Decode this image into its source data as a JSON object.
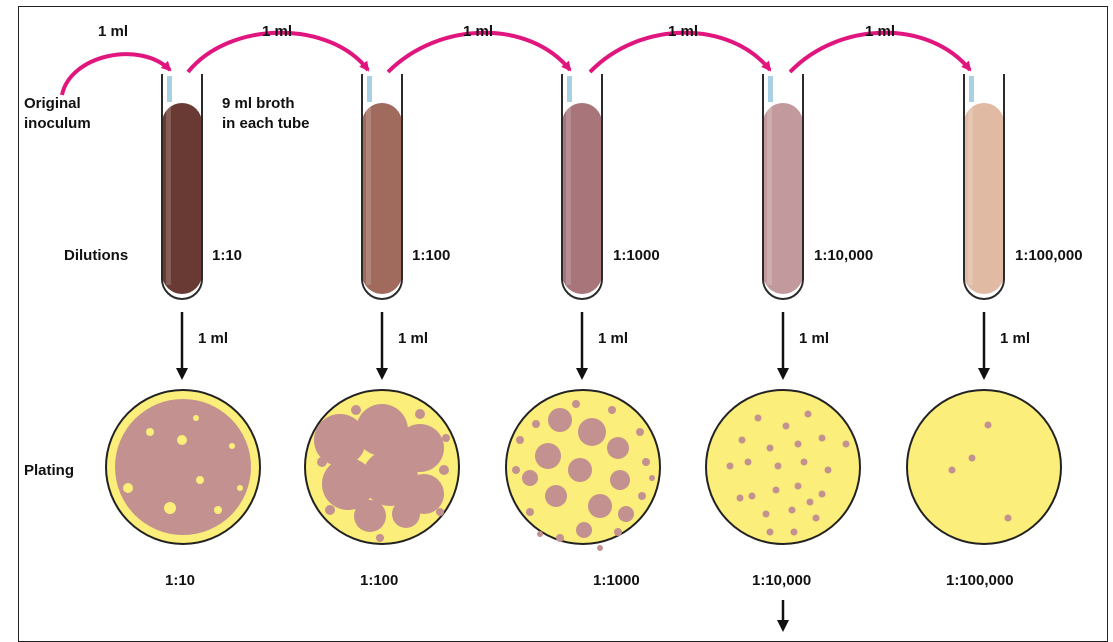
{
  "diagram": {
    "transfer_label": "1 ml",
    "original_inoculum": [
      "Original",
      "inoculum"
    ],
    "broth_note": [
      "9 ml broth",
      "in each tube"
    ],
    "dilutions_label": "Dilutions",
    "plating_label": "Plating",
    "tubes": [
      {
        "dilution": "1:10",
        "liquid_color": "#693a33"
      },
      {
        "dilution": "1:100",
        "liquid_color": "#a06a5c"
      },
      {
        "dilution": "1:1000",
        "liquid_color": "#a7757a"
      },
      {
        "dilution": "1:10,000",
        "liquid_color": "#c29a9e"
      },
      {
        "dilution": "1:100,000",
        "liquid_color": "#e0baa3"
      }
    ],
    "plates": [
      {
        "dilution": "1:10"
      },
      {
        "dilution": "1:100"
      },
      {
        "dilution": "1:1000"
      },
      {
        "dilution": "1:10,000"
      },
      {
        "dilution": "1:100,000"
      }
    ],
    "colors": {
      "arrow_magenta": "#e0157d",
      "agar_yellow": "#fbee7a",
      "colony_mauve": "#c3918f",
      "frame": "#222222"
    }
  }
}
